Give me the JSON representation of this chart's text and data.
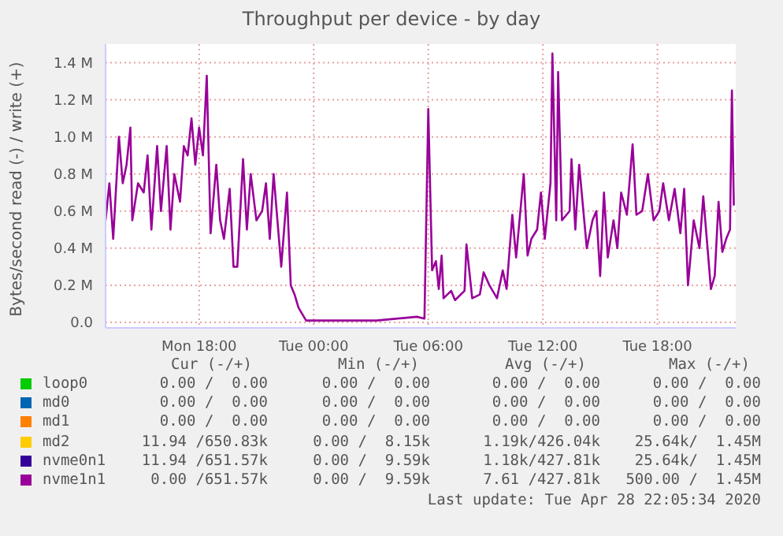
{
  "chart_data": {
    "type": "line",
    "title": "Throughput per device - by day",
    "ylabel": "Bytes/second read (-) / write (+)",
    "x": [
      "2020-04-27T13:06",
      "2020-04-27T13:18",
      "2020-04-27T13:30",
      "2020-04-27T13:48",
      "2020-04-27T14:00",
      "2020-04-27T14:12",
      "2020-04-27T14:24",
      "2020-04-27T14:30",
      "2020-04-27T14:48",
      "2020-04-27T15:06",
      "2020-04-27T15:18",
      "2020-04-27T15:30",
      "2020-04-27T15:48",
      "2020-04-27T16:00",
      "2020-04-27T16:18",
      "2020-04-27T16:30",
      "2020-04-27T16:42",
      "2020-04-27T17:00",
      "2020-04-27T17:12",
      "2020-04-27T17:24",
      "2020-04-27T17:36",
      "2020-04-27T17:48",
      "2020-04-27T18:00",
      "2020-04-27T18:12",
      "2020-04-27T18:24",
      "2020-04-27T18:36",
      "2020-04-27T18:54",
      "2020-04-27T19:06",
      "2020-04-27T19:18",
      "2020-04-27T19:36",
      "2020-04-27T19:48",
      "2020-04-27T20:00",
      "2020-04-27T20:18",
      "2020-04-27T20:30",
      "2020-04-27T20:42",
      "2020-04-27T21:00",
      "2020-04-27T21:18",
      "2020-04-27T21:30",
      "2020-04-27T21:42",
      "2020-04-27T21:54",
      "2020-04-27T22:06",
      "2020-04-27T22:18",
      "2020-04-27T22:36",
      "2020-04-27T22:48",
      "2020-04-27T23:00",
      "2020-04-27T23:12",
      "2020-04-27T23:36",
      "2020-04-28T03:18",
      "2020-04-28T05:24",
      "2020-04-28T05:48",
      "2020-04-28T06:00",
      "2020-04-28T06:12",
      "2020-04-28T06:24",
      "2020-04-28T06:33",
      "2020-04-28T06:42",
      "2020-04-28T06:48",
      "2020-04-28T07:12",
      "2020-04-28T07:24",
      "2020-04-28T07:54",
      "2020-04-28T08:00",
      "2020-04-28T08:18",
      "2020-04-28T08:42",
      "2020-04-28T08:54",
      "2020-04-28T09:12",
      "2020-04-28T09:36",
      "2020-04-28T09:54",
      "2020-04-28T10:06",
      "2020-04-28T10:24",
      "2020-04-28T10:36",
      "2020-04-28T11:00",
      "2020-04-28T11:12",
      "2020-04-28T11:24",
      "2020-04-28T11:42",
      "2020-04-28T11:54",
      "2020-04-28T12:06",
      "2020-04-28T12:24",
      "2020-04-28T12:30",
      "2020-04-28T12:42",
      "2020-04-28T12:48",
      "2020-04-28T13:00",
      "2020-04-28T13:24",
      "2020-04-28T13:30",
      "2020-04-28T13:42",
      "2020-04-28T13:54",
      "2020-04-28T14:18",
      "2020-04-28T14:36",
      "2020-04-28T14:48",
      "2020-04-28T15:00",
      "2020-04-28T15:12",
      "2020-04-28T15:24",
      "2020-04-28T15:42",
      "2020-04-28T15:54",
      "2020-04-28T16:06",
      "2020-04-28T16:24",
      "2020-04-28T16:42",
      "2020-04-28T16:54",
      "2020-04-28T17:12",
      "2020-04-28T17:30",
      "2020-04-28T17:48",
      "2020-04-28T18:06",
      "2020-04-28T18:18",
      "2020-04-28T18:36",
      "2020-04-28T18:54",
      "2020-04-28T19:12",
      "2020-04-28T19:24",
      "2020-04-28T19:36",
      "2020-04-28T19:54",
      "2020-04-28T20:12",
      "2020-04-28T20:24",
      "2020-04-28T20:48",
      "2020-04-28T21:00",
      "2020-04-28T21:12",
      "2020-04-28T21:24",
      "2020-04-28T21:36",
      "2020-04-28T21:48",
      "2020-04-28T21:54",
      "2020-04-28T22:00"
    ],
    "series": [
      {
        "name": "loop0",
        "color": "#00cc00",
        "values": [
          null,
          null,
          null,
          null,
          null,
          null,
          null,
          null,
          null,
          null,
          null,
          null,
          null,
          null,
          null,
          null,
          null,
          null,
          null,
          null,
          null,
          null,
          null,
          null,
          null,
          null,
          null,
          null,
          null,
          null,
          null,
          null,
          null,
          null,
          null,
          null,
          null,
          null,
          null,
          null,
          null,
          null,
          null,
          null,
          null,
          null,
          null,
          null,
          null,
          null,
          null,
          null,
          null,
          null,
          null,
          null,
          null,
          null,
          null,
          null,
          null,
          null,
          null,
          null,
          null,
          null,
          null,
          null,
          null,
          null,
          null,
          null,
          null,
          null,
          null,
          null,
          null,
          null,
          null,
          null,
          null,
          null,
          null,
          null,
          null,
          null,
          null,
          null,
          null,
          null,
          null,
          null,
          null,
          null,
          null,
          null,
          null,
          null,
          null,
          null,
          null,
          null,
          null,
          null,
          null,
          null,
          null,
          null,
          null,
          null,
          null,
          null,
          null,
          null,
          null,
          null,
          null
        ]
      },
      {
        "name": "md0",
        "color": "#0066b3",
        "values": [
          null,
          null,
          null,
          null,
          null,
          null,
          null,
          null,
          null,
          null,
          null,
          null,
          null,
          null,
          null,
          null,
          null,
          null,
          null,
          null,
          null,
          null,
          null,
          null,
          null,
          null,
          null,
          null,
          null,
          null,
          null,
          null,
          null,
          null,
          null,
          null,
          null,
          null,
          null,
          null,
          null,
          null,
          null,
          null,
          null,
          null,
          null,
          null,
          null,
          null,
          null,
          null,
          null,
          null,
          null,
          null,
          null,
          null,
          null,
          null,
          null,
          null,
          null,
          null,
          null,
          null,
          null,
          null,
          null,
          null,
          null,
          null,
          null,
          null,
          null,
          null,
          null,
          null,
          null,
          null,
          null,
          null,
          null,
          null,
          null,
          null,
          null,
          null,
          null,
          null,
          null,
          null,
          null,
          null,
          null,
          null,
          null,
          null,
          null,
          null,
          null,
          null,
          null,
          null,
          null,
          null,
          null,
          null,
          null,
          null,
          null,
          null,
          null,
          null,
          null,
          null,
          null
        ]
      },
      {
        "name": "md1",
        "color": "#ff8000",
        "values": [
          null,
          null,
          null,
          null,
          null,
          null,
          null,
          null,
          null,
          null,
          null,
          null,
          null,
          null,
          null,
          null,
          null,
          null,
          null,
          null,
          null,
          null,
          null,
          null,
          null,
          null,
          null,
          null,
          null,
          null,
          null,
          null,
          null,
          null,
          null,
          null,
          null,
          null,
          null,
          null,
          null,
          null,
          null,
          null,
          null,
          null,
          null,
          null,
          null,
          null,
          null,
          null,
          null,
          null,
          null,
          null,
          null,
          null,
          null,
          null,
          null,
          null,
          null,
          null,
          null,
          null,
          null,
          null,
          null,
          null,
          null,
          null,
          null,
          null,
          null,
          null,
          null,
          null,
          null,
          null,
          null,
          null,
          null,
          null,
          null,
          null,
          null,
          null,
          null,
          null,
          null,
          null,
          null,
          null,
          null,
          null,
          null,
          null,
          null,
          null,
          null,
          null,
          null,
          null,
          null,
          null,
          null,
          null,
          null,
          null,
          null,
          null,
          null,
          null,
          null,
          null,
          null
        ]
      },
      {
        "name": "md2",
        "color": "#ffcc00",
        "values": [
          null,
          null,
          null,
          null,
          null,
          null,
          null,
          null,
          null,
          null,
          null,
          null,
          null,
          null,
          null,
          null,
          null,
          null,
          null,
          null,
          null,
          null,
          null,
          null,
          null,
          null,
          null,
          null,
          null,
          null,
          null,
          null,
          null,
          null,
          null,
          null,
          null,
          null,
          null,
          null,
          null,
          null,
          null,
          null,
          null,
          null,
          null,
          null,
          null,
          null,
          null,
          null,
          null,
          null,
          null,
          null,
          null,
          null,
          null,
          null,
          null,
          null,
          null,
          null,
          null,
          null,
          null,
          null,
          null,
          null,
          null,
          null,
          null,
          null,
          null,
          null,
          null,
          null,
          null,
          null,
          null,
          null,
          null,
          null,
          null,
          null,
          null,
          null,
          null,
          null,
          null,
          null,
          null,
          null,
          null,
          null,
          null,
          null,
          null,
          null,
          null,
          null,
          null,
          null,
          null,
          null,
          null,
          null,
          null,
          null,
          null,
          null,
          null,
          null,
          null,
          null,
          null
        ]
      },
      {
        "name": "nvme0n1",
        "color": "#330099",
        "values": [
          null,
          null,
          null,
          null,
          null,
          null,
          null,
          null,
          null,
          null,
          null,
          null,
          null,
          null,
          null,
          null,
          null,
          null,
          null,
          null,
          null,
          null,
          null,
          null,
          null,
          null,
          null,
          null,
          null,
          null,
          null,
          null,
          null,
          null,
          null,
          null,
          null,
          null,
          null,
          null,
          null,
          null,
          null,
          null,
          null,
          null,
          null,
          null,
          null,
          null,
          null,
          null,
          null,
          null,
          null,
          null,
          null,
          null,
          null,
          null,
          null,
          null,
          null,
          null,
          null,
          null,
          null,
          null,
          null,
          null,
          null,
          null,
          null,
          null,
          null,
          null,
          null,
          null,
          null,
          null,
          null,
          null,
          null,
          null,
          null,
          null,
          null,
          null,
          null,
          null,
          null,
          null,
          null,
          null,
          null,
          null,
          null,
          null,
          null,
          null,
          null,
          null,
          null,
          null,
          null,
          null,
          null,
          null,
          null,
          null,
          null,
          null,
          null,
          null,
          null,
          null,
          null
        ]
      },
      {
        "name": "nvme1n1",
        "color": "#990099",
        "values": [
          550000,
          750000,
          450000,
          1000000,
          750000,
          850000,
          1050000,
          550000,
          750000,
          700000,
          900000,
          500000,
          950000,
          600000,
          950000,
          500000,
          800000,
          650000,
          950000,
          900000,
          1100000,
          850000,
          1050000,
          900000,
          1330000,
          480000,
          850000,
          550000,
          450000,
          720000,
          300000,
          300000,
          880000,
          500000,
          800000,
          550000,
          600000,
          750000,
          450000,
          800000,
          550000,
          300000,
          700000,
          200000,
          150000,
          80000,
          10000,
          10000,
          30000,
          20000,
          1150000,
          280000,
          330000,
          180000,
          360000,
          130000,
          170000,
          120000,
          170000,
          420000,
          130000,
          150000,
          270000,
          200000,
          130000,
          280000,
          180000,
          580000,
          350000,
          800000,
          360000,
          450000,
          500000,
          700000,
          450000,
          750000,
          1450000,
          550000,
          1350000,
          550000,
          600000,
          880000,
          500000,
          850000,
          400000,
          550000,
          600000,
          250000,
          700000,
          350000,
          550000,
          400000,
          700000,
          580000,
          960000,
          580000,
          600000,
          800000,
          550000,
          600000,
          750000,
          550000,
          720000,
          480000,
          720000,
          200000,
          550000,
          400000,
          680000,
          180000,
          250000,
          650000,
          380000,
          450000,
          500000,
          1250000,
          630000
        ]
      }
    ],
    "xlim": [
      "2020-04-27T13:06",
      "2020-04-28T22:06"
    ],
    "xticks": [
      {
        "value": "2020-04-27T18:00",
        "label": "Mon 18:00"
      },
      {
        "value": "2020-04-28T00:00",
        "label": "Tue 00:00"
      },
      {
        "value": "2020-04-28T06:00",
        "label": "Tue 06:00"
      },
      {
        "value": "2020-04-28T12:00",
        "label": "Tue 12:00"
      },
      {
        "value": "2020-04-28T18:00",
        "label": "Tue 18:00"
      }
    ],
    "ylim": [
      -30000,
      1500000
    ],
    "yticks": [
      {
        "value": 0,
        "label": "0.0"
      },
      {
        "value": 200000,
        "label": "0.2 M"
      },
      {
        "value": 400000,
        "label": "0.4 M"
      },
      {
        "value": 600000,
        "label": "0.6 M"
      },
      {
        "value": 800000,
        "label": "0.8 M"
      },
      {
        "value": 1000000,
        "label": "1.0 M"
      },
      {
        "value": 1200000,
        "label": "1.2 M"
      },
      {
        "value": 1400000,
        "label": "1.4 M"
      }
    ],
    "grid": true,
    "legend": "bottom",
    "marker": "none",
    "line_style": "solid",
    "annotations": [
      "Cur (-/+)",
      "Min (-/+)",
      "Avg (-/+)",
      "Max (-/+)",
      "0.00 /  0.00",
      "0.00 /  0.00",
      "0.00 /  0.00",
      "0.00 /  0.00",
      "0.00 /  0.00",
      "0.00 /  0.00",
      "0.00 /  0.00",
      "0.00 /  0.00",
      "0.00 /  0.00",
      "0.00 /  0.00",
      "0.00 /  0.00",
      "0.00 /  0.00",
      "11.94 /650.83k",
      "0.00 /  8.15k",
      "1.19k/426.04k",
      "25.64k/  1.45M",
      "11.94 /651.57k",
      "0.00 /  9.59k",
      "1.18k/427.81k",
      "25.64k/  1.45M",
      "0.00 /651.57k",
      "0.00 /  9.59k",
      "7.61 /427.81k",
      "500.00 /  1.45M",
      "Last update: Tue Apr 28 22:05:34 2020"
    ]
  }
}
